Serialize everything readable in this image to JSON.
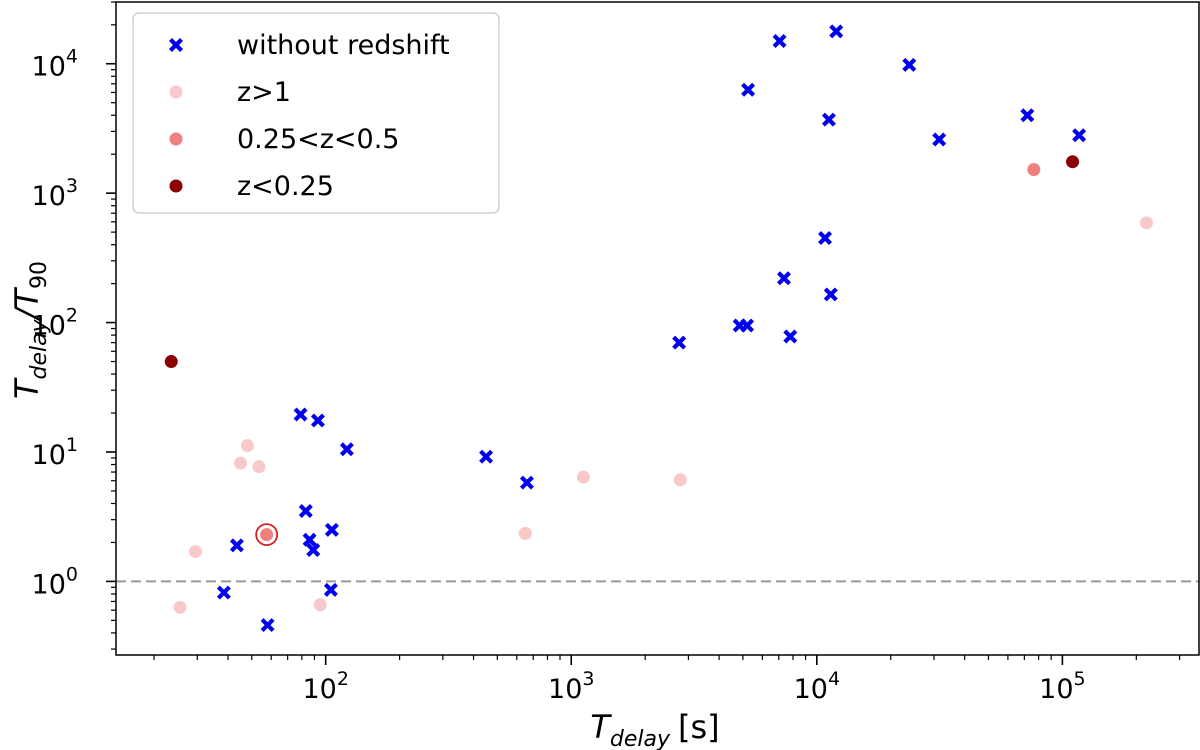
{
  "chart_data": {
    "type": "scatter",
    "title": "",
    "xlabel": {
      "main": "T",
      "sub": "delay",
      "unit": "[s]"
    },
    "ylabel": {
      "main": "T",
      "sub1": "delay",
      "sep": "/T",
      "sub2": "90"
    },
    "xscale": "log",
    "yscale": "log",
    "xlim": [
      14,
      360000
    ],
    "ylim": [
      0.27,
      30000
    ],
    "x_ticks": [
      {
        "value": 100,
        "base": "10",
        "exp": "2"
      },
      {
        "value": 1000,
        "base": "10",
        "exp": "3"
      },
      {
        "value": 10000,
        "base": "10",
        "exp": "4"
      },
      {
        "value": 100000,
        "base": "10",
        "exp": "5"
      }
    ],
    "y_ticks": [
      {
        "value": 1,
        "base": "10",
        "exp": "0"
      },
      {
        "value": 10,
        "base": "10",
        "exp": "1"
      },
      {
        "value": 100,
        "base": "10",
        "exp": "2"
      },
      {
        "value": 1000,
        "base": "10",
        "exp": "3"
      },
      {
        "value": 10000,
        "base": "10",
        "exp": "4"
      }
    ],
    "reference_line": {
      "y": 1,
      "style": "dashed",
      "color": "#999999"
    },
    "legend_position": "top-left",
    "series": [
      {
        "name": "without redshift",
        "marker": "x-filled",
        "color": "#0000ee",
        "points": [
          [
            43.5,
            1.9
          ],
          [
            38.5,
            0.82
          ],
          [
            58,
            0.46
          ],
          [
            79,
            19.5
          ],
          [
            83,
            3.5
          ],
          [
            86,
            2.1
          ],
          [
            89,
            1.75
          ],
          [
            93,
            17.5
          ],
          [
            105,
            0.86
          ],
          [
            106,
            2.5
          ],
          [
            122,
            10.5
          ],
          [
            450,
            9.2
          ],
          [
            660,
            5.8
          ],
          [
            2750,
            70
          ],
          [
            4850,
            95
          ],
          [
            5200,
            95
          ],
          [
            5250,
            6300
          ],
          [
            7050,
            15000
          ],
          [
            7350,
            220
          ],
          [
            7800,
            78
          ],
          [
            10800,
            450
          ],
          [
            11200,
            3700
          ],
          [
            11400,
            165
          ],
          [
            12000,
            17800
          ],
          [
            23800,
            9800
          ],
          [
            31500,
            2600
          ],
          [
            72000,
            4000
          ],
          [
            117000,
            2800
          ]
        ]
      },
      {
        "name": "z>1",
        "marker": "circle",
        "color": "#f9c9c9",
        "points": [
          [
            25.5,
            0.63
          ],
          [
            29.5,
            1.7
          ],
          [
            45,
            8.2
          ],
          [
            48,
            11.2
          ],
          [
            53.5,
            7.7
          ],
          [
            95,
            0.66
          ],
          [
            650,
            2.35
          ],
          [
            1120,
            6.4
          ],
          [
            2780,
            6.1
          ],
          [
            220000,
            590
          ]
        ]
      },
      {
        "name": "0.25<z<0.5",
        "marker": "circle",
        "color": "#f08080",
        "points": [
          [
            57.5,
            2.3
          ],
          [
            76500,
            1520
          ]
        ],
        "highlighted_point": [
          57.5,
          2.3
        ]
      },
      {
        "name": "z<0.25",
        "marker": "circle",
        "color": "#8b0000",
        "points": [
          [
            23.5,
            50
          ],
          [
            110000,
            1750
          ]
        ]
      }
    ]
  }
}
